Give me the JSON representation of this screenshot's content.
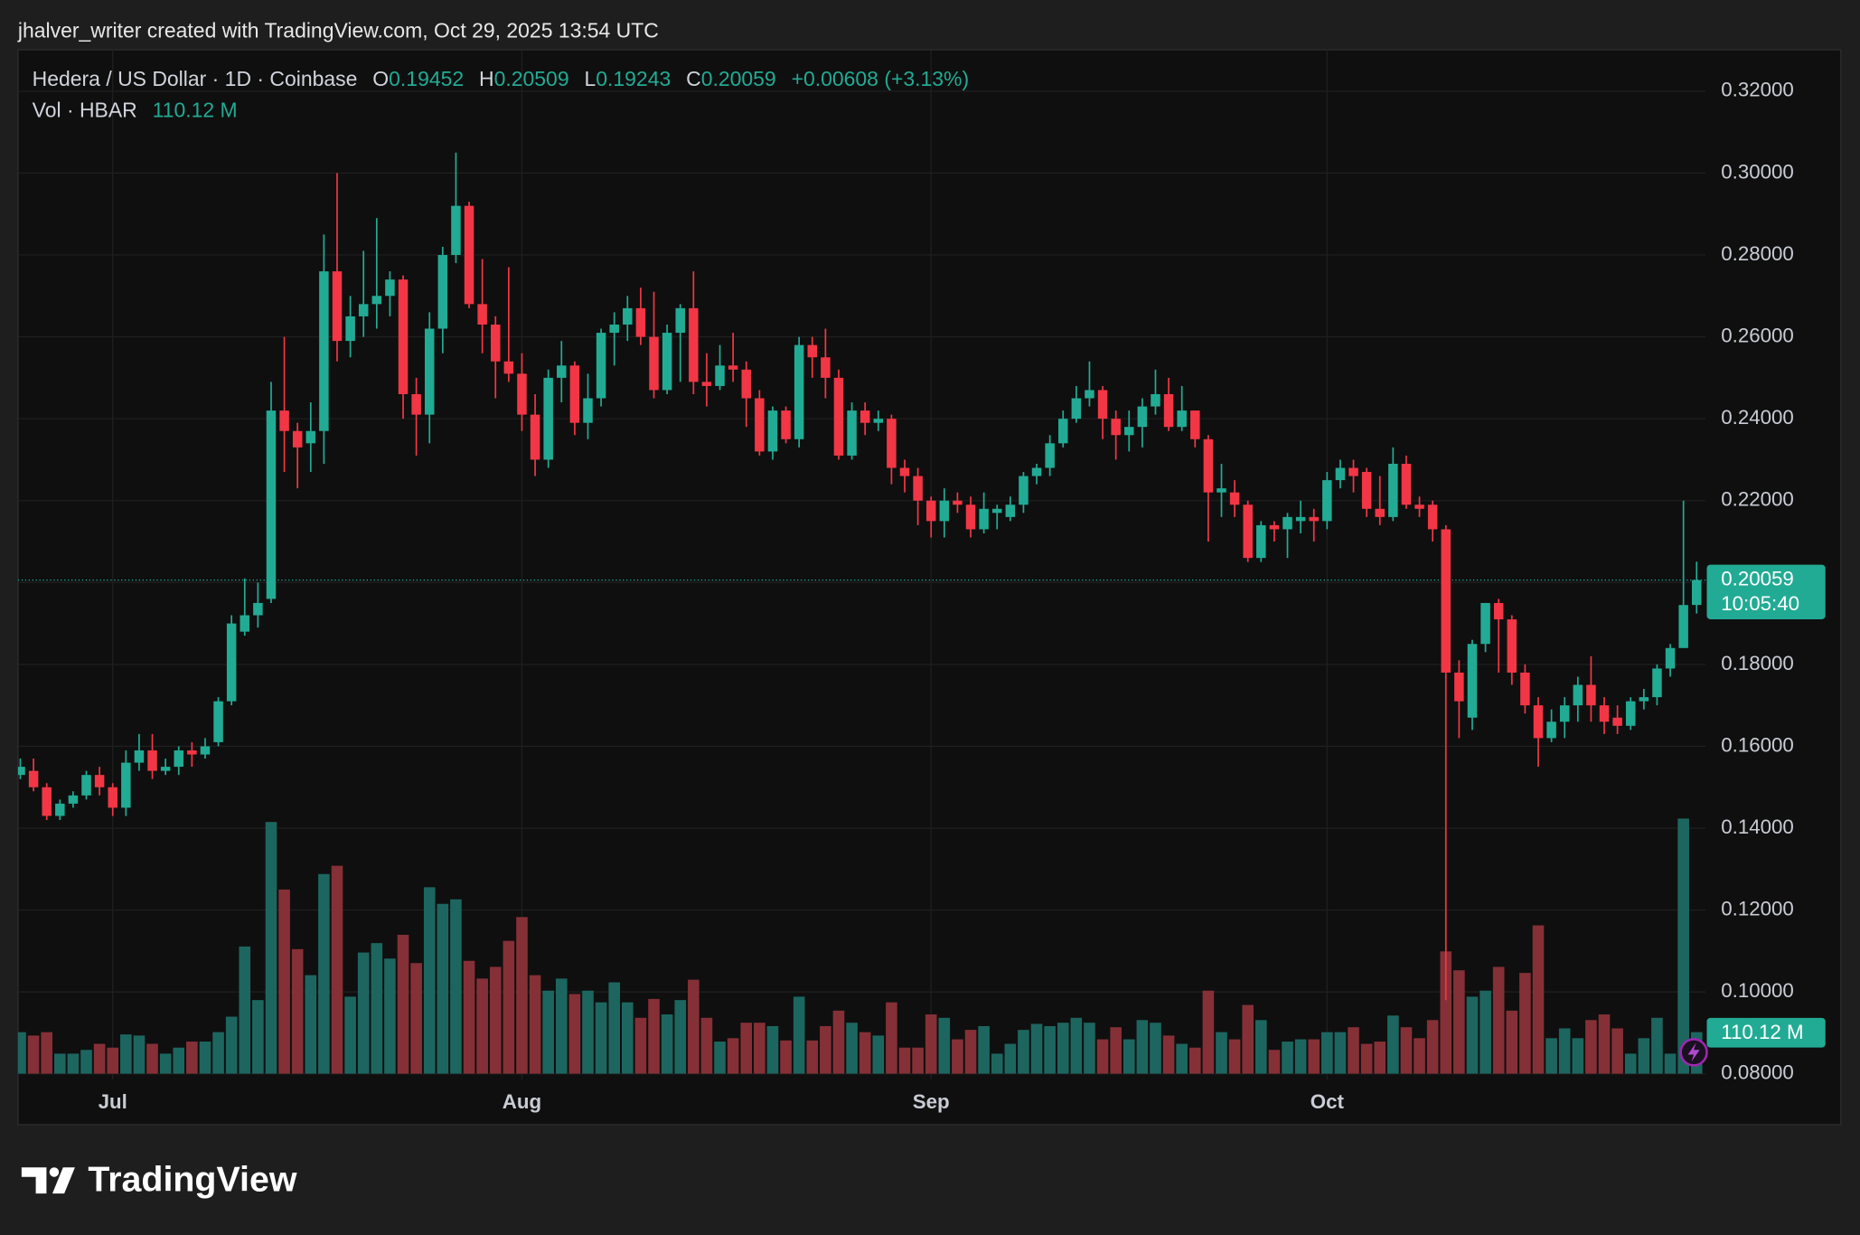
{
  "header": {
    "attribution": "jhalver_writer created with TradingView.com, Oct 29, 2025 13:54 UTC"
  },
  "chart_data": {
    "type": "candlestick",
    "legend": {
      "symbol": "Hedera / US Dollar · 1D · Coinbase",
      "open_label": "O",
      "high_label": "H",
      "low_label": "L",
      "close_label": "C",
      "change": "+0.00608 (+3.13%)",
      "volume_name": "Vol · HBAR"
    },
    "volume_label": "110.12 M",
    "countdown": "10:05:40",
    "x": [
      null,
      null,
      null,
      null,
      null,
      null,
      null,
      "Jul",
      null,
      null,
      null,
      null,
      null,
      null,
      null,
      null,
      null,
      null,
      null,
      null,
      null,
      null,
      null,
      null,
      null,
      null,
      null,
      null,
      null,
      null,
      null,
      null,
      null,
      null,
      null,
      null,
      null,
      null,
      "Aug",
      null,
      null,
      null,
      null,
      null,
      null,
      null,
      null,
      null,
      null,
      null,
      null,
      null,
      null,
      null,
      null,
      null,
      null,
      null,
      null,
      null,
      null,
      null,
      null,
      null,
      null,
      null,
      null,
      null,
      null,
      "Sep",
      null,
      null,
      null,
      null,
      null,
      null,
      null,
      null,
      null,
      null,
      null,
      null,
      null,
      null,
      null,
      null,
      null,
      null,
      null,
      null,
      null,
      null,
      null,
      null,
      null,
      null,
      null,
      null,
      null,
      "Oct",
      null,
      null,
      null,
      null,
      null,
      null,
      null,
      null,
      null,
      null,
      null,
      null,
      null,
      null,
      null,
      null,
      null,
      null,
      null,
      null,
      null,
      null,
      null,
      null,
      null,
      null,
      null,
      null
    ],
    "open": [
      0.153,
      0.154,
      0.15,
      0.143,
      0.146,
      0.148,
      0.153,
      0.15,
      0.145,
      0.156,
      0.159,
      0.154,
      0.155,
      0.159,
      0.158,
      0.161,
      0.171,
      0.188,
      0.192,
      0.196,
      0.242,
      0.237,
      0.234,
      0.237,
      0.276,
      0.259,
      0.265,
      0.268,
      0.27,
      0.274,
      0.246,
      0.241,
      0.262,
      0.28,
      0.292,
      0.268,
      0.263,
      0.254,
      0.251,
      0.241,
      0.23,
      0.25,
      0.253,
      0.239,
      0.245,
      0.261,
      0.263,
      0.267,
      0.26,
      0.247,
      0.261,
      0.267,
      0.249,
      0.248,
      0.253,
      0.252,
      0.245,
      0.232,
      0.242,
      0.235,
      0.258,
      0.255,
      0.25,
      0.231,
      0.242,
      0.239,
      0.24,
      0.228,
      0.226,
      0.22,
      0.215,
      0.22,
      0.219,
      0.213,
      0.217,
      0.216,
      0.219,
      0.226,
      0.228,
      0.234,
      0.24,
      0.245,
      0.247,
      0.24,
      0.236,
      0.238,
      0.243,
      0.246,
      0.238,
      0.242,
      0.235,
      0.222,
      0.222,
      0.219,
      0.206,
      0.214,
      0.213,
      0.215,
      0.216,
      0.215,
      0.225,
      0.228,
      0.227,
      0.218,
      0.216,
      0.229,
      0.219,
      0.219,
      0.213,
      0.178,
      0.167,
      0.185,
      0.195,
      0.191,
      0.178,
      0.17,
      0.162,
      0.166,
      0.17,
      0.175,
      0.17,
      0.167,
      0.165,
      0.171,
      0.172,
      0.179,
      0.184,
      0.19452
    ],
    "high": [
      0.157,
      0.157,
      0.151,
      0.147,
      0.149,
      0.154,
      0.155,
      0.151,
      0.159,
      0.163,
      0.163,
      0.157,
      0.16,
      0.161,
      0.162,
      0.172,
      0.192,
      0.201,
      0.2,
      0.249,
      0.26,
      0.239,
      0.244,
      0.285,
      0.3,
      0.27,
      0.281,
      0.289,
      0.276,
      0.275,
      0.25,
      0.266,
      0.282,
      0.305,
      0.293,
      0.279,
      0.265,
      0.277,
      0.256,
      0.246,
      0.252,
      0.259,
      0.254,
      0.251,
      0.262,
      0.266,
      0.27,
      0.272,
      0.271,
      0.263,
      0.268,
      0.276,
      0.256,
      0.258,
      0.261,
      0.254,
      0.247,
      0.243,
      0.243,
      0.26,
      0.26,
      0.262,
      0.252,
      0.244,
      0.244,
      0.242,
      0.241,
      0.23,
      0.228,
      0.221,
      0.223,
      0.222,
      0.221,
      0.222,
      0.219,
      0.221,
      0.227,
      0.229,
      0.236,
      0.242,
      0.248,
      0.254,
      0.248,
      0.242,
      0.242,
      0.245,
      0.252,
      0.25,
      0.248,
      0.242,
      0.236,
      0.229,
      0.225,
      0.22,
      0.215,
      0.215,
      0.217,
      0.22,
      0.218,
      0.227,
      0.23,
      0.23,
      0.228,
      0.226,
      0.233,
      0.231,
      0.221,
      0.22,
      0.214,
      0.181,
      0.186,
      0.195,
      0.196,
      0.192,
      0.18,
      0.172,
      0.169,
      0.172,
      0.177,
      0.182,
      0.172,
      0.17,
      0.172,
      0.174,
      0.18,
      0.185,
      0.22,
      0.20509
    ],
    "low": [
      0.152,
      0.149,
      0.142,
      0.142,
      0.145,
      0.147,
      0.148,
      0.143,
      0.143,
      0.154,
      0.152,
      0.153,
      0.153,
      0.155,
      0.157,
      0.16,
      0.17,
      0.187,
      0.189,
      0.195,
      0.227,
      0.223,
      0.227,
      0.229,
      0.254,
      0.255,
      0.26,
      0.262,
      0.265,
      0.24,
      0.231,
      0.234,
      0.256,
      0.278,
      0.267,
      0.256,
      0.245,
      0.249,
      0.237,
      0.226,
      0.228,
      0.244,
      0.236,
      0.235,
      0.243,
      0.253,
      0.259,
      0.258,
      0.245,
      0.246,
      0.249,
      0.246,
      0.243,
      0.247,
      0.249,
      0.238,
      0.231,
      0.23,
      0.234,
      0.233,
      0.25,
      0.245,
      0.23,
      0.23,
      0.236,
      0.237,
      0.224,
      0.222,
      0.214,
      0.211,
      0.211,
      0.217,
      0.211,
      0.212,
      0.213,
      0.215,
      0.217,
      0.224,
      0.226,
      0.233,
      0.239,
      0.243,
      0.235,
      0.23,
      0.232,
      0.233,
      0.241,
      0.237,
      0.237,
      0.233,
      0.21,
      0.216,
      0.216,
      0.205,
      0.205,
      0.21,
      0.206,
      0.212,
      0.21,
      0.213,
      0.223,
      0.222,
      0.216,
      0.214,
      0.215,
      0.218,
      0.216,
      0.21,
      0.098,
      0.162,
      0.164,
      0.183,
      0.178,
      0.175,
      0.168,
      0.155,
      0.161,
      0.162,
      0.166,
      0.166,
      0.163,
      0.163,
      0.164,
      0.169,
      0.17,
      0.177,
      0.184,
      0.19243
    ],
    "close": [
      0.155,
      0.15,
      0.143,
      0.146,
      0.148,
      0.153,
      0.15,
      0.145,
      0.156,
      0.159,
      0.154,
      0.155,
      0.159,
      0.158,
      0.16,
      0.171,
      0.19,
      0.192,
      0.195,
      0.242,
      0.237,
      0.233,
      0.237,
      0.276,
      0.259,
      0.265,
      0.268,
      0.27,
      0.274,
      0.246,
      0.241,
      0.262,
      0.28,
      0.292,
      0.268,
      0.263,
      0.254,
      0.251,
      0.241,
      0.23,
      0.25,
      0.253,
      0.239,
      0.245,
      0.261,
      0.263,
      0.267,
      0.26,
      0.247,
      0.261,
      0.267,
      0.249,
      0.248,
      0.253,
      0.252,
      0.245,
      0.232,
      0.242,
      0.235,
      0.258,
      0.255,
      0.25,
      0.231,
      0.242,
      0.239,
      0.24,
      0.228,
      0.226,
      0.22,
      0.215,
      0.22,
      0.219,
      0.213,
      0.218,
      0.218,
      0.219,
      0.226,
      0.228,
      0.234,
      0.24,
      0.245,
      0.247,
      0.24,
      0.236,
      0.238,
      0.243,
      0.246,
      0.238,
      0.242,
      0.235,
      0.222,
      0.223,
      0.219,
      0.206,
      0.214,
      0.213,
      0.216,
      0.216,
      0.215,
      0.225,
      0.228,
      0.226,
      0.218,
      0.216,
      0.229,
      0.219,
      0.218,
      0.213,
      0.178,
      0.171,
      0.185,
      0.195,
      0.191,
      0.178,
      0.17,
      0.162,
      0.166,
      0.17,
      0.175,
      0.17,
      0.166,
      0.165,
      0.171,
      0.172,
      0.179,
      0.184,
      0.1945,
      0.20059
    ],
    "volume": [
      110,
      101,
      110,
      53,
      53,
      63,
      79,
      69,
      104,
      101,
      79,
      53,
      69,
      85,
      85,
      110,
      151,
      337,
      195,
      667,
      488,
      330,
      261,
      529,
      551,
      204,
      321,
      346,
      305,
      368,
      293,
      494,
      450,
      462,
      299,
      252,
      283,
      352,
      415,
      261,
      220,
      252,
      211,
      220,
      189,
      242,
      189,
      148,
      198,
      157,
      195,
      249,
      148,
      85,
      94,
      135,
      135,
      126,
      88,
      204,
      88,
      126,
      167,
      135,
      110,
      101,
      189,
      69,
      69,
      157,
      148,
      91,
      116,
      126,
      53,
      79,
      116,
      132,
      126,
      135,
      148,
      135,
      91,
      123,
      91,
      142,
      135,
      101,
      79,
      69,
      220,
      110,
      91,
      182,
      142,
      63,
      85,
      91,
      91,
      110,
      110,
      123,
      79,
      85,
      154,
      123,
      94,
      142,
      324,
      274,
      204,
      220,
      283,
      167,
      267,
      393,
      94,
      120,
      94,
      142,
      157,
      120,
      53,
      94,
      148,
      53,
      676,
      110.12
    ],
    "ylim": [
      0.0786,
      0.3301
    ],
    "yticks": [
      {
        "value": 0.08,
        "label": "0.08000"
      },
      {
        "value": 0.1,
        "label": "0.10000"
      },
      {
        "value": 0.12,
        "label": "0.12000"
      },
      {
        "value": 0.14,
        "label": "0.14000"
      },
      {
        "value": 0.16,
        "label": "0.16000"
      },
      {
        "value": 0.18,
        "label": "0.18000"
      },
      {
        "value": 0.2,
        "label": "0.20000"
      },
      {
        "value": 0.22,
        "label": "0.22000"
      },
      {
        "value": 0.24,
        "label": "0.24000"
      },
      {
        "value": 0.26,
        "label": "0.26000"
      },
      {
        "value": 0.28,
        "label": "0.28000"
      },
      {
        "value": 0.3,
        "label": "0.30000"
      },
      {
        "value": 0.32,
        "label": "0.32000"
      }
    ],
    "grid": true,
    "up_color": "#22ab94",
    "down_color": "#f23645",
    "volume_up_color": "#1d6660",
    "volume_down_color": "#853036"
  },
  "footer": {
    "brand": "TradingView"
  }
}
